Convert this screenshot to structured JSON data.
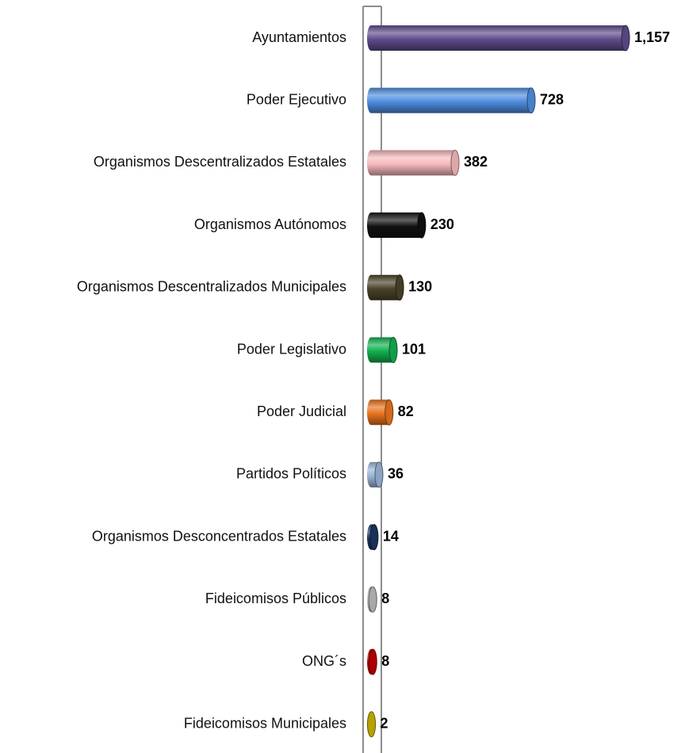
{
  "chart_data": {
    "type": "bar",
    "orientation": "horizontal",
    "categories": [
      "Ayuntamientos",
      "Poder Ejecutivo",
      "Organismos Descentralizados Estatales",
      "Organismos Autónomos",
      "Organismos Descentralizados Municipales",
      "Poder Legislativo",
      "Poder Judicial",
      "Partidos Políticos",
      "Organismos Desconcentrados Estatales",
      "Fideicomisos Públicos",
      "ONG´s",
      "Fideicomisos Municipales"
    ],
    "values": [
      1157,
      728,
      382,
      230,
      130,
      101,
      82,
      36,
      14,
      8,
      8,
      2
    ],
    "value_labels": [
      "1,157",
      "728",
      "382",
      "230",
      "130",
      "101",
      "82",
      "36",
      "14",
      "8",
      "8",
      "2"
    ],
    "colors": [
      "#5f4b8b",
      "#4f8ee0",
      "#f7b9bd",
      "#111111",
      "#4a4329",
      "#12b04f",
      "#e8731f",
      "#9bb5d9",
      "#1b3662",
      "#bcbcbc",
      "#c00000",
      "#c9b400"
    ],
    "xlim": [
      0,
      1200
    ],
    "grid": false
  }
}
